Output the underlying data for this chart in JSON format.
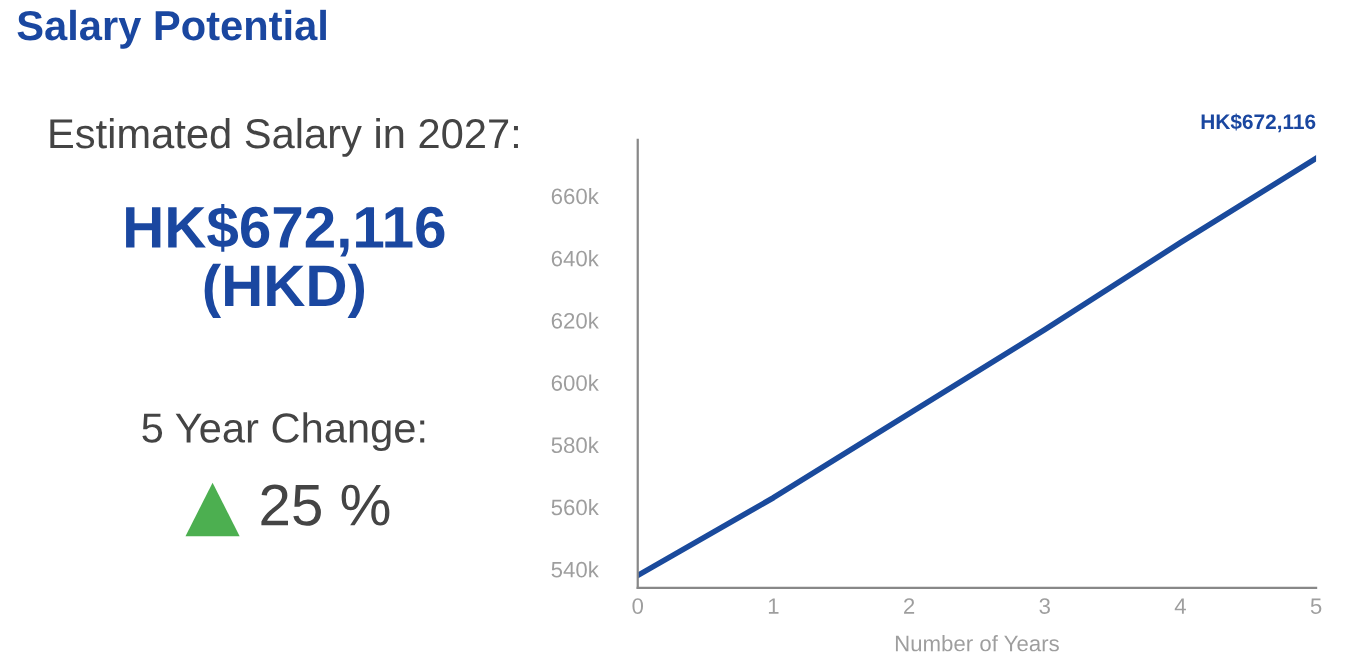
{
  "chart_data": [
    {
      "type": "other",
      "title": "Salary Potential",
      "annotations": [
        "Estimated Salary in 2027:",
        "HK$672,116\n(HKD)",
        "5 Year Change:",
        "25 %"
      ]
    },
    {
      "type": "line",
      "xlabel": "Number of Years",
      "x": [
        0,
        1,
        2,
        3,
        4,
        5
      ],
      "series": [
        {
          "color": "#1a4a9c",
          "values": [
            538000,
            563000,
            590000,
            617000,
            645000,
            672116
          ]
        }
      ],
      "xlim": [
        0,
        5
      ],
      "xticks": [
        0,
        1,
        2,
        3,
        4,
        5
      ],
      "ylim": [
        534000,
        678000
      ],
      "yticks": [
        {
          "value": 540000,
          "label": "540k"
        },
        {
          "value": 560000,
          "label": "560k"
        },
        {
          "value": 580000,
          "label": "580k"
        },
        {
          "value": 600000,
          "label": "600k"
        },
        {
          "value": 620000,
          "label": "620k"
        },
        {
          "value": 640000,
          "label": "640k"
        },
        {
          "value": 660000,
          "label": "660k"
        }
      ],
      "annotations": [
        {
          "text": "HK$672,116",
          "x": 5,
          "y": 672116
        }
      ],
      "grid": false,
      "marker": "none",
      "line_style": "solid"
    }
  ]
}
